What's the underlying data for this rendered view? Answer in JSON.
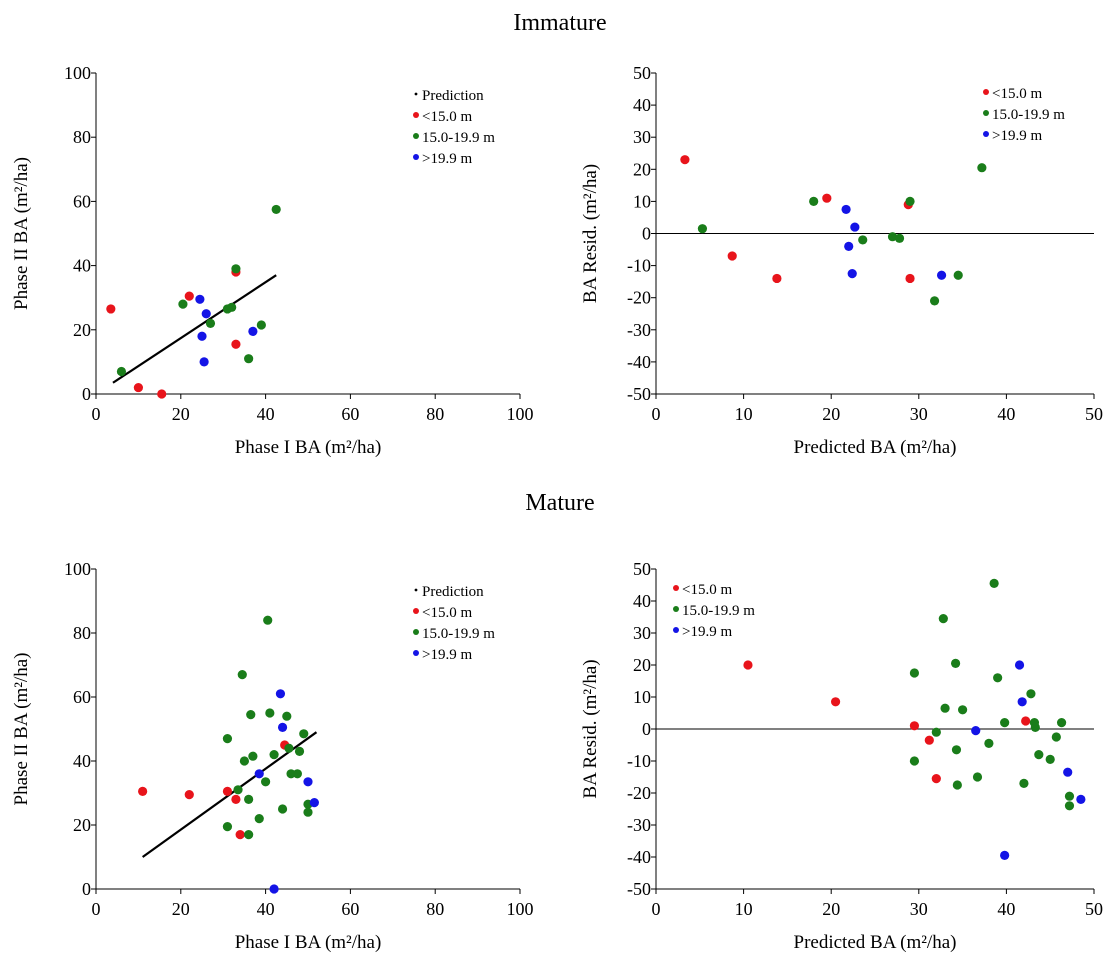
{
  "colors": {
    "lt15": "#e8141b",
    "mid": "#1a7d1a",
    "gt199": "#1414e6"
  },
  "sections": [
    "Immature",
    "Mature"
  ],
  "chart_data": [
    {
      "type": "scatter",
      "section": "Immature",
      "xlabel": "Phase I BA (m²/ha)",
      "ylabel": "Phase II BA (m²/ha)",
      "xlim": [
        0,
        100
      ],
      "ylim": [
        0,
        100
      ],
      "xticks": [
        0,
        20,
        40,
        60,
        80,
        100
      ],
      "yticks": [
        0,
        20,
        40,
        60,
        80,
        100
      ],
      "legend_position": "top-right",
      "legend": [
        "Prediction",
        "<15.0 m",
        "15.0-19.9 m",
        ">19.9 m"
      ],
      "prediction_line": {
        "x": [
          4,
          42.5
        ],
        "y": [
          3.5,
          37
        ]
      },
      "series": [
        {
          "name": "<15.0 m",
          "color_key": "lt15",
          "points": [
            [
              3.5,
              26.5
            ],
            [
              10,
              2
            ],
            [
              15.5,
              0
            ],
            [
              22,
              30.5
            ],
            [
              33,
              38
            ],
            [
              33,
              15.5
            ]
          ]
        },
        {
          "name": "15.0-19.9 m",
          "color_key": "mid",
          "points": [
            [
              6,
              7
            ],
            [
              20.5,
              28
            ],
            [
              27,
              22
            ],
            [
              31,
              26.5
            ],
            [
              32,
              27
            ],
            [
              33,
              39
            ],
            [
              36,
              11
            ],
            [
              39,
              21.5
            ],
            [
              42.5,
              57.5
            ]
          ]
        },
        {
          "name": ">19.9 m",
          "color_key": "gt199",
          "points": [
            [
              24.5,
              29.5
            ],
            [
              25,
              18
            ],
            [
              25.5,
              10
            ],
            [
              26,
              25
            ],
            [
              37,
              19.5
            ]
          ]
        }
      ]
    },
    {
      "type": "scatter",
      "section": "Immature",
      "xlabel": "Predicted BA (m²/ha)",
      "ylabel": "BA Resid. (m²/ha)",
      "xlim": [
        0,
        50
      ],
      "ylim": [
        -50,
        50
      ],
      "xticks": [
        0,
        10,
        20,
        30,
        40,
        50
      ],
      "yticks": [
        -50,
        -40,
        -30,
        -20,
        -10,
        0,
        10,
        20,
        30,
        40,
        50
      ],
      "legend_position": "top-right",
      "legend": [
        "<15.0 m",
        "15.0-19.9 m",
        ">19.9 m"
      ],
      "zero_line": true,
      "series": [
        {
          "name": "<15.0 m",
          "color_key": "lt15",
          "points": [
            [
              3.3,
              23
            ],
            [
              8.7,
              -7
            ],
            [
              13.8,
              -14
            ],
            [
              19.5,
              11
            ],
            [
              28.8,
              9
            ],
            [
              29,
              -14
            ]
          ]
        },
        {
          "name": "15.0-19.9 m",
          "color_key": "mid",
          "points": [
            [
              5.3,
              1.5
            ],
            [
              18,
              10
            ],
            [
              23.6,
              -2
            ],
            [
              27,
              -1
            ],
            [
              27.8,
              -1.5
            ],
            [
              29,
              10
            ],
            [
              31.8,
              -21
            ],
            [
              34.5,
              -13
            ],
            [
              37.2,
              20.5
            ]
          ]
        },
        {
          "name": ">19.9 m",
          "color_key": "gt199",
          "points": [
            [
              21.7,
              7.5
            ],
            [
              22,
              -4
            ],
            [
              22.4,
              -12.5
            ],
            [
              22.7,
              2
            ],
            [
              32.6,
              -13
            ]
          ]
        }
      ]
    },
    {
      "type": "scatter",
      "section": "Mature",
      "xlabel": "Phase I BA (m²/ha)",
      "ylabel": "Phase II BA (m²/ha)",
      "xlim": [
        0,
        100
      ],
      "ylim": [
        0,
        100
      ],
      "xticks": [
        0,
        20,
        40,
        60,
        80,
        100
      ],
      "yticks": [
        0,
        20,
        40,
        60,
        80,
        100
      ],
      "legend_position": "top-right",
      "legend": [
        "Prediction",
        "<15.0 m",
        "15.0-19.9 m",
        ">19.9 m"
      ],
      "prediction_line": {
        "x": [
          11,
          52
        ],
        "y": [
          10,
          49
        ]
      },
      "series": [
        {
          "name": "<15.0 m",
          "color_key": "lt15",
          "points": [
            [
              11,
              30.5
            ],
            [
              22,
              29.5
            ],
            [
              31,
              30.5
            ],
            [
              33,
              28
            ],
            [
              34,
              17
            ],
            [
              44.5,
              45
            ]
          ]
        },
        {
          "name": "15.0-19.9 m",
          "color_key": "mid",
          "points": [
            [
              31,
              47
            ],
            [
              31,
              19.5
            ],
            [
              33.5,
              31
            ],
            [
              34.5,
              67
            ],
            [
              35,
              40
            ],
            [
              36,
              28
            ],
            [
              36,
              17
            ],
            [
              36.5,
              54.5
            ],
            [
              37,
              41.5
            ],
            [
              38.5,
              22
            ],
            [
              40,
              33.5
            ],
            [
              40.5,
              84
            ],
            [
              41,
              55
            ],
            [
              42,
              42
            ],
            [
              44,
              25
            ],
            [
              45,
              54
            ],
            [
              45.5,
              44
            ],
            [
              46,
              36
            ],
            [
              47.5,
              36
            ],
            [
              48,
              43
            ],
            [
              49,
              48.5
            ],
            [
              50,
              26.5
            ],
            [
              50,
              24
            ]
          ]
        },
        {
          "name": ">19.9 m",
          "color_key": "gt199",
          "points": [
            [
              38.5,
              36
            ],
            [
              42,
              0
            ],
            [
              43.5,
              61
            ],
            [
              44,
              50.5
            ],
            [
              50,
              33.5
            ],
            [
              51.5,
              27
            ]
          ]
        }
      ]
    },
    {
      "type": "scatter",
      "section": "Mature",
      "xlabel": "Predicted BA (m²/ha)",
      "ylabel": "BA Resid. (m²/ha)",
      "xlim": [
        0,
        50
      ],
      "ylim": [
        -50,
        50
      ],
      "xticks": [
        0,
        10,
        20,
        30,
        40,
        50
      ],
      "yticks": [
        -50,
        -40,
        -30,
        -20,
        -10,
        0,
        10,
        20,
        30,
        40,
        50
      ],
      "legend_position": "top-left",
      "legend": [
        "<15.0 m",
        "15.0-19.9 m",
        ">19.9 m"
      ],
      "zero_line": true,
      "series": [
        {
          "name": "<15.0 m",
          "color_key": "lt15",
          "points": [
            [
              10.5,
              20
            ],
            [
              20.5,
              8.5
            ],
            [
              29.5,
              1
            ],
            [
              31.2,
              -3.5
            ],
            [
              32,
              -15.5
            ],
            [
              42.2,
              2.5
            ]
          ]
        },
        {
          "name": "15.0-19.9 m",
          "color_key": "mid",
          "points": [
            [
              29.5,
              17.5
            ],
            [
              29.5,
              -10
            ],
            [
              32,
              -1
            ],
            [
              32.8,
              34.5
            ],
            [
              33,
              6.5
            ],
            [
              34.2,
              20.5
            ],
            [
              34.3,
              -6.5
            ],
            [
              34.4,
              -17.5
            ],
            [
              35,
              6
            ],
            [
              36.7,
              -15
            ],
            [
              38,
              -4.5
            ],
            [
              38.6,
              45.5
            ],
            [
              39,
              16
            ],
            [
              39.8,
              2
            ],
            [
              42,
              -17
            ],
            [
              42.8,
              11
            ],
            [
              43.2,
              2
            ],
            [
              43.3,
              0.5
            ],
            [
              43.7,
              -8
            ],
            [
              45,
              -9.5
            ],
            [
              45.7,
              -2.5
            ],
            [
              46.3,
              2
            ],
            [
              47.2,
              -21
            ],
            [
              47.2,
              -24
            ]
          ]
        },
        {
          "name": ">19.9 m",
          "color_key": "gt199",
          "points": [
            [
              36.5,
              -0.5
            ],
            [
              39.8,
              -39.5
            ],
            [
              41.5,
              20
            ],
            [
              41.8,
              8.5
            ],
            [
              47,
              -13.5
            ],
            [
              48.5,
              -22
            ]
          ]
        }
      ]
    }
  ]
}
